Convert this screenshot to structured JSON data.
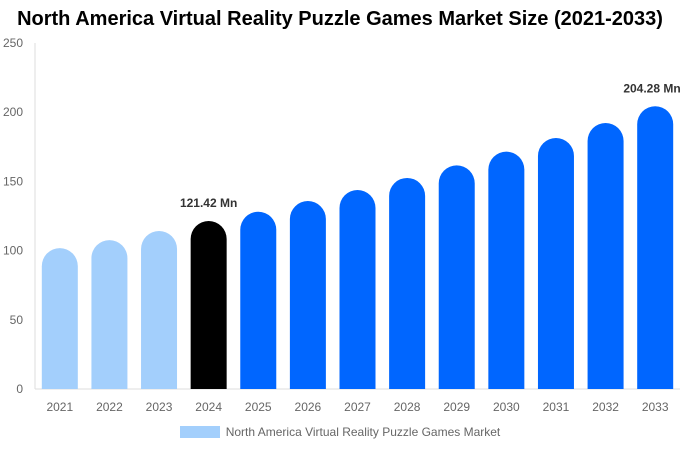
{
  "chart_data": {
    "type": "bar",
    "title": "North America Virtual Reality Puzzle Games Market Size (2021-2033)",
    "categories": [
      "2021",
      "2022",
      "2023",
      "2024",
      "2025",
      "2026",
      "2027",
      "2028",
      "2029",
      "2030",
      "2031",
      "2032",
      "2033"
    ],
    "series": [
      {
        "name": "North America Virtual Reality Puzzle Games Market",
        "values": [
          101.8,
          107.6,
          114.2,
          121.42,
          128.1,
          135.8,
          143.8,
          152.5,
          161.6,
          171.5,
          181.4,
          192.2,
          204.28
        ]
      }
    ],
    "data_labels": {
      "3": "121.42 Mn",
      "12": "204.28 Mn"
    },
    "ylim": [
      0,
      250
    ],
    "yticks": [
      0,
      50,
      100,
      150,
      200,
      250
    ],
    "xlabel": "",
    "ylabel": "",
    "grid": false,
    "legend_position": "bottom",
    "colors": {
      "historical": "#a3cffc",
      "base_year": "#000000",
      "forecast": "#0066ff"
    }
  }
}
